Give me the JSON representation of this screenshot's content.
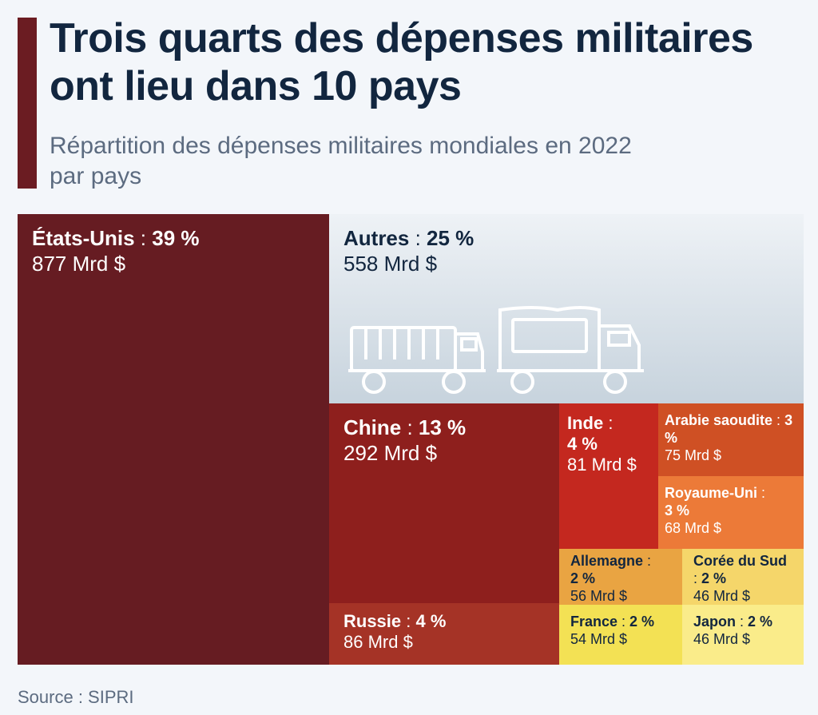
{
  "header": {
    "title": "Trois quarts des dépenses militaires ont lieu dans 10 pays",
    "subtitle": "Répartition des dépenses militaires mondiales en 2022 par pays"
  },
  "source": "Source : SIPRI",
  "chart_data": {
    "type": "treemap",
    "title": "Trois quarts des dépenses militaires ont lieu dans 10 pays",
    "subtitle": "Répartition des dépenses militaires mondiales en 2022 par pays",
    "unit": "Mrd $",
    "items": [
      {
        "name": "États-Unis",
        "percent": 39,
        "value": 877,
        "pct_label": "39 %",
        "value_label": "877 Mrd $",
        "color": "#661c22"
      },
      {
        "name": "Autres",
        "percent": 25,
        "value": 558,
        "pct_label": "25 %",
        "value_label": "558 Mrd $",
        "color": "#dfe7ee"
      },
      {
        "name": "Chine",
        "percent": 13,
        "value": 292,
        "pct_label": "13 %",
        "value_label": "292 Mrd $",
        "color": "#8e1f1d"
      },
      {
        "name": "Russie",
        "percent": 4,
        "value": 86,
        "pct_label": "4 %",
        "value_label": "86 Mrd $",
        "color": "#a53326"
      },
      {
        "name": "Inde",
        "percent": 4,
        "value": 81,
        "pct_label": "4 %",
        "value_label": "81 Mrd $",
        "color": "#c4281f"
      },
      {
        "name": "Arabie saoudite",
        "percent": 3,
        "value": 75,
        "pct_label": "3 %",
        "value_label": "75 Mrd $",
        "color": "#cf5024"
      },
      {
        "name": "Royaume-Uni",
        "percent": 3,
        "value": 68,
        "pct_label": "3 %",
        "value_label": "68 Mrd $",
        "color": "#ec7a38"
      },
      {
        "name": "Allemagne",
        "percent": 2,
        "value": 56,
        "pct_label": "2 %",
        "value_label": "56 Mrd $",
        "color": "#e9a442"
      },
      {
        "name": "Corée du Sud",
        "percent": 2,
        "value": 46,
        "pct_label": "2 %",
        "value_label": "46 Mrd $",
        "color": "#f5d66a"
      },
      {
        "name": "France",
        "percent": 2,
        "value": 54,
        "pct_label": "2 %",
        "value_label": "54 Mrd $",
        "color": "#f3e154"
      },
      {
        "name": "Japon",
        "percent": 2,
        "value": 46,
        "pct_label": "2 %",
        "value_label": "46 Mrd $",
        "color": "#faec8a"
      }
    ]
  }
}
